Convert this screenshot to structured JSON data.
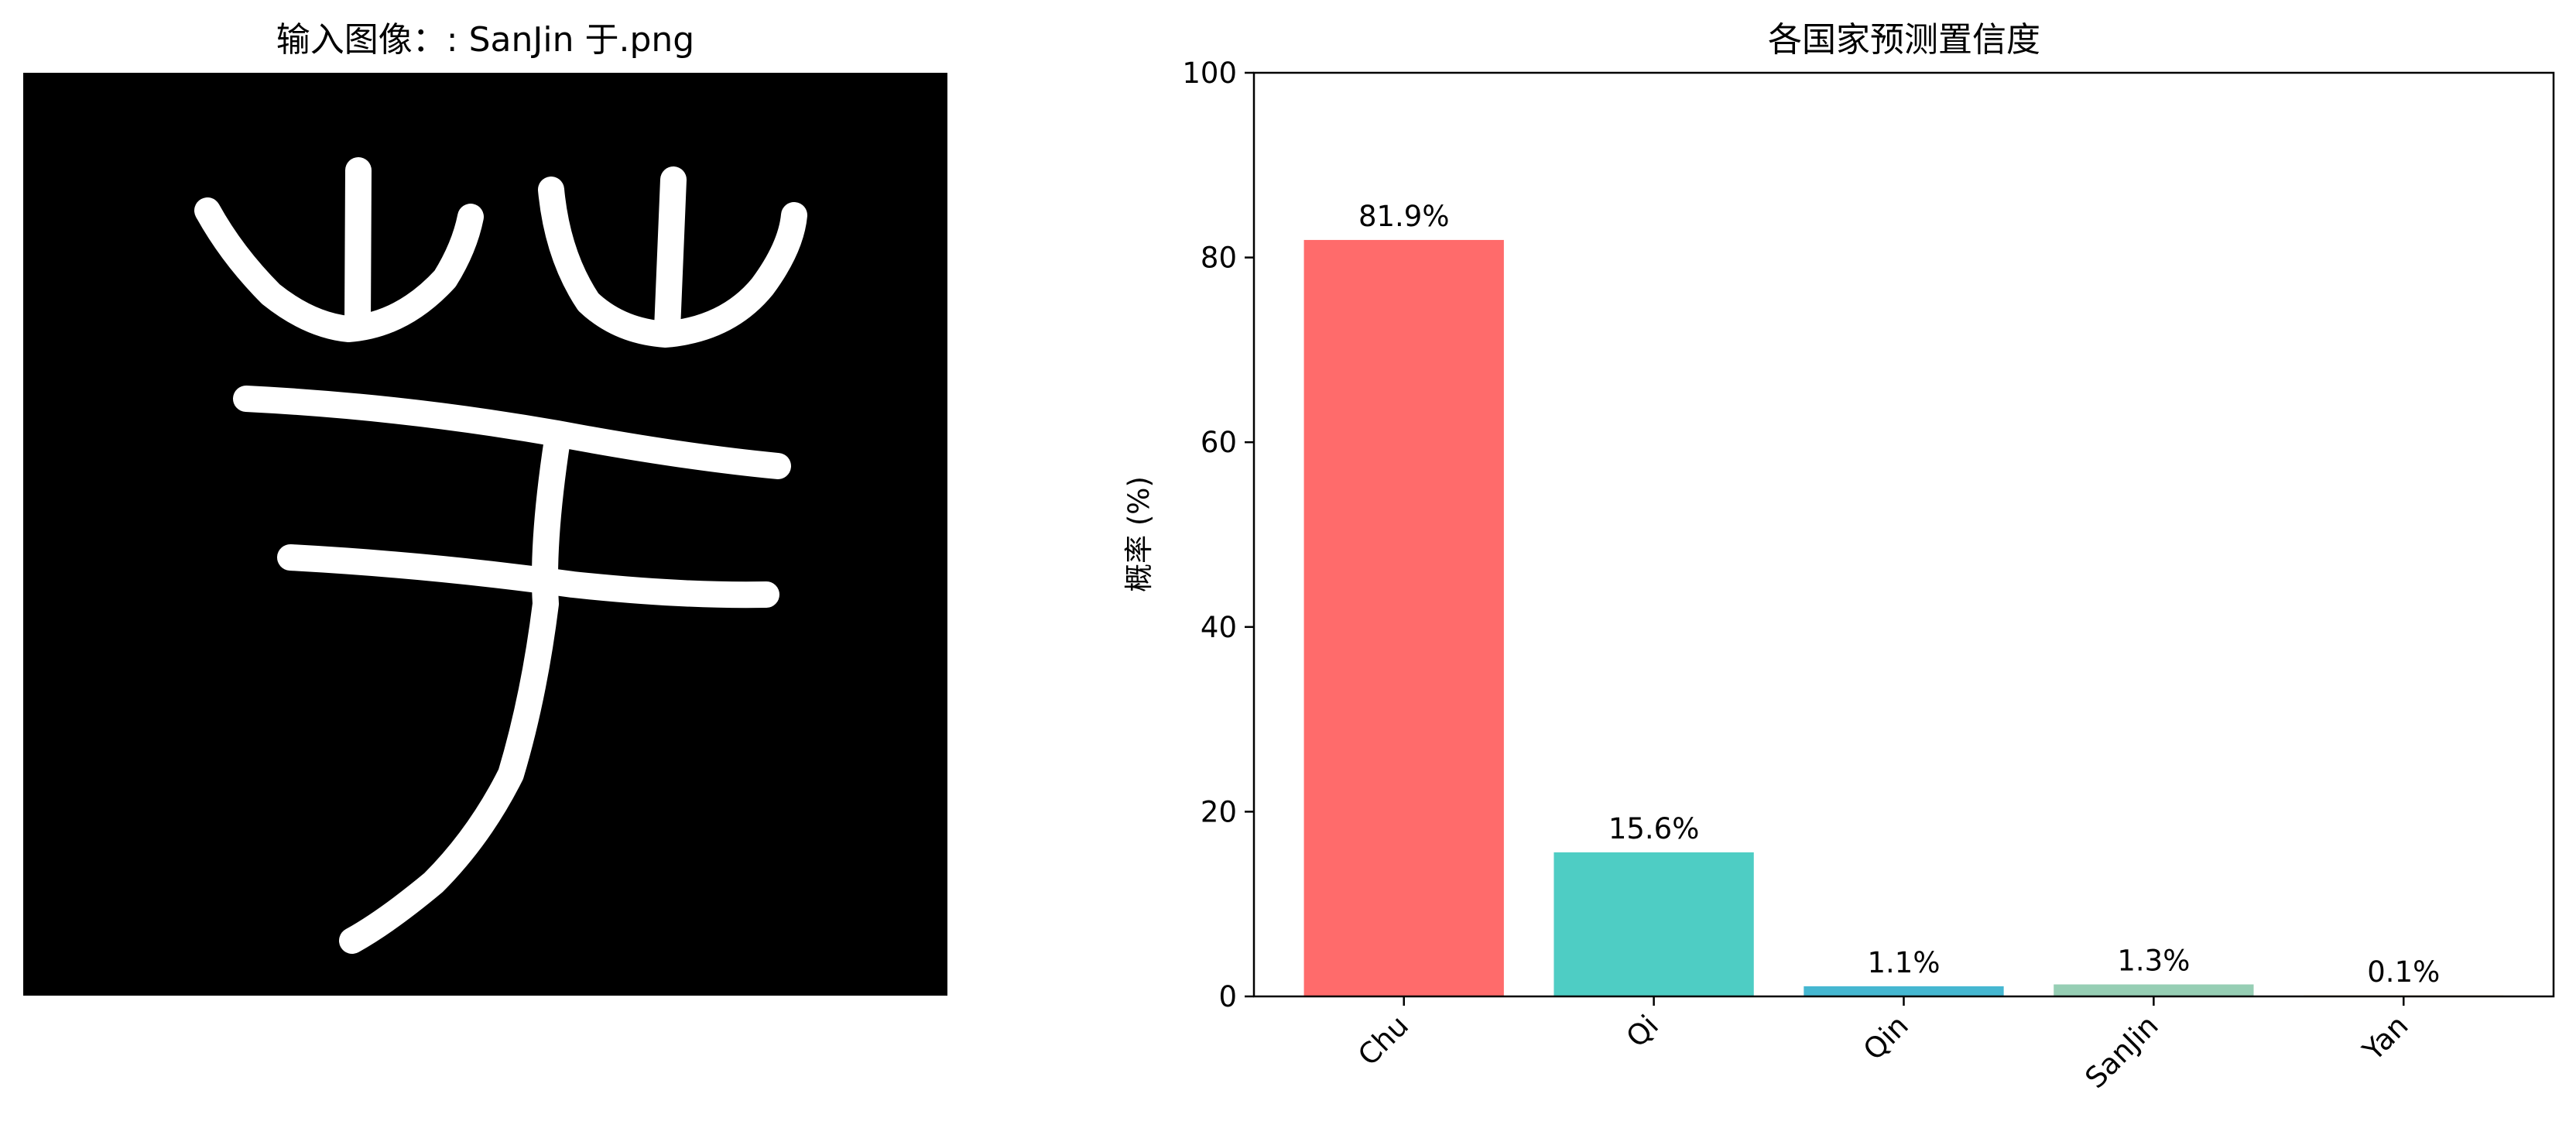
{
  "left_panel": {
    "title": "输入图像：: SanJin 于.png",
    "glyph_text": "于",
    "image_background": "#000000",
    "glyph_color": "#ffffff"
  },
  "chart_data": {
    "type": "bar",
    "title": "各国家预测置信度",
    "xlabel": "",
    "ylabel": "概率 (%)",
    "categories": [
      "Chu",
      "Qi",
      "Qin",
      "SanJin",
      "Yan"
    ],
    "values": [
      81.9,
      15.6,
      1.1,
      1.3,
      0.1
    ],
    "value_labels": [
      "81.9%",
      "15.6%",
      "1.1%",
      "1.3%",
      "0.1%"
    ],
    "colors": [
      "#ff6b6b",
      "#4ecdc4",
      "#45b7d1",
      "#96ceb4",
      "#feca57"
    ],
    "ylim": [
      0,
      100
    ],
    "yticks": [
      "0",
      "20",
      "40",
      "60",
      "80",
      "100"
    ],
    "grid": false,
    "legend": "none",
    "xtick_rotation": 45
  }
}
